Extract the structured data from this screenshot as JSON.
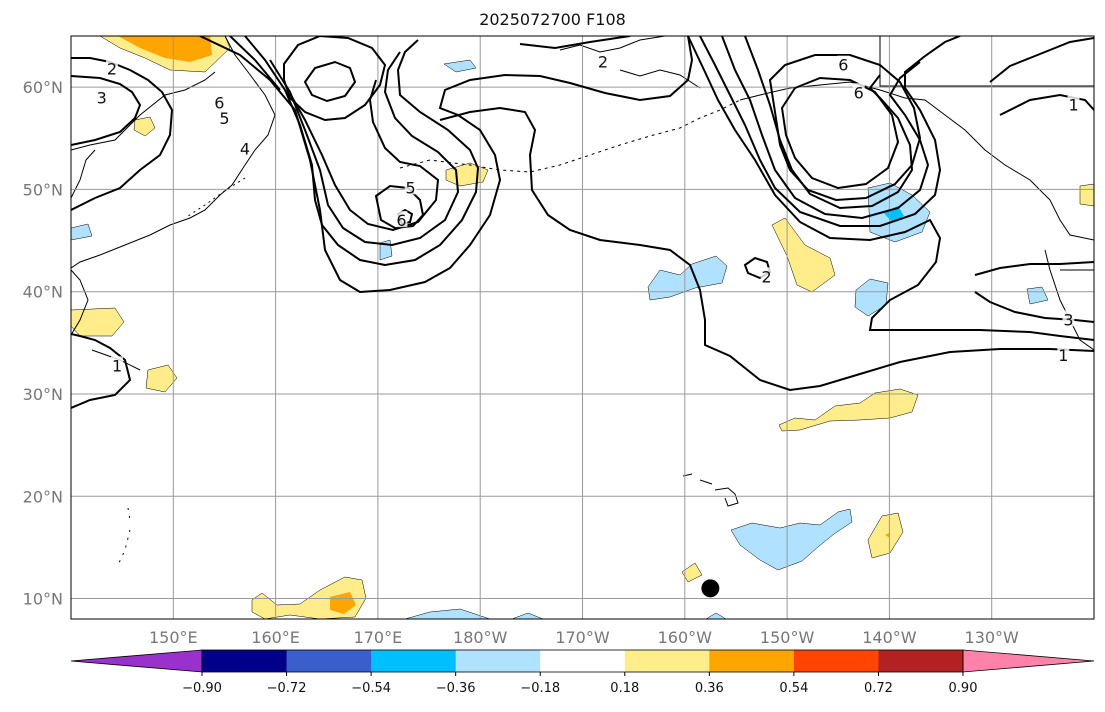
{
  "title": "2025072700 F108",
  "map": {
    "projection": "equirectangular",
    "lon_range": [
      140,
      240
    ],
    "lat_range": [
      8,
      65
    ],
    "grid": true,
    "lat_labels": [
      "60°N",
      "50°N",
      "40°N",
      "30°N",
      "20°N",
      "10°N"
    ],
    "lon_labels": [
      "150°E",
      "160°E",
      "170°E",
      "180°W",
      "170°W",
      "160°W",
      "150°W",
      "140°W",
      "130°W"
    ],
    "contour_color": "#000000",
    "coastline_color": "#000000",
    "grid_color": "#9a9a9a",
    "contour_labels": [
      {
        "text": "2",
        "lon": 144,
        "lat": 61.8
      },
      {
        "text": "3",
        "lon": 143,
        "lat": 59
      },
      {
        "text": "2",
        "lon": 192,
        "lat": 62.5
      },
      {
        "text": "6",
        "lon": 154.5,
        "lat": 58.5
      },
      {
        "text": "5",
        "lon": 155,
        "lat": 57
      },
      {
        "text": "4",
        "lon": 157,
        "lat": 54
      },
      {
        "text": "5",
        "lon": 173.2,
        "lat": 50.2
      },
      {
        "text": "6",
        "lon": 172.3,
        "lat": 47
      },
      {
        "text": "2",
        "lon": 208,
        "lat": 41.5
      },
      {
        "text": "6",
        "lon": 215.5,
        "lat": 62.2
      },
      {
        "text": "6",
        "lon": 217,
        "lat": 59.5
      },
      {
        "text": "1",
        "lon": 238,
        "lat": 58.3
      },
      {
        "text": "3",
        "lon": 237.5,
        "lat": 37.3
      },
      {
        "text": "1",
        "lon": 237,
        "lat": 33.8
      },
      {
        "text": "1",
        "lon": 144.5,
        "lat": 32.8
      }
    ]
  },
  "colorbar": {
    "ticks": [
      "−0.90",
      "−0.72",
      "−0.54",
      "−0.36",
      "−0.18",
      "0.18",
      "0.36",
      "0.54",
      "0.72",
      "0.90"
    ],
    "colors": [
      "#9932cc",
      "#00008b",
      "#3a5fcd",
      "#00bfff",
      "#b0e2ff",
      "#ffffff",
      "#ffec8b",
      "#ffa500",
      "#ff4500",
      "#b22222",
      "#ff82ab"
    ]
  },
  "point_marker": {
    "lon": 202.5,
    "lat": 11
  }
}
